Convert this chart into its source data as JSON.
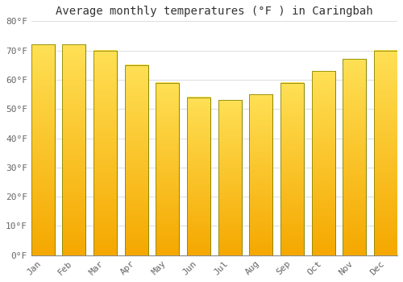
{
  "months": [
    "Jan",
    "Feb",
    "Mar",
    "Apr",
    "May",
    "Jun",
    "Jul",
    "Aug",
    "Sep",
    "Oct",
    "Nov",
    "Dec"
  ],
  "values": [
    72,
    72,
    70,
    65,
    59,
    54,
    53,
    55,
    59,
    63,
    67,
    70
  ],
  "bar_color_bottom": "#F5A800",
  "bar_color_top": "#FFD966",
  "bar_edge_color": "#888800",
  "title": "Average monthly temperatures (°F ) in Caringbah",
  "ylim": [
    0,
    80
  ],
  "ytick_step": 10,
  "background_color": "#FFFFFF",
  "plot_bg_color": "#FFFFFF",
  "grid_color": "#DDDDDD",
  "title_fontsize": 10,
  "tick_fontsize": 8,
  "tick_color": "#666666"
}
